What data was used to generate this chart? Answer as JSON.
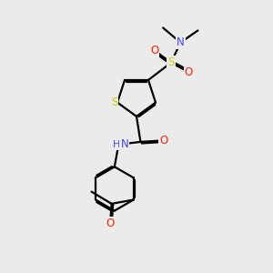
{
  "bg_color": "#ebebeb",
  "colors": {
    "C": "#000000",
    "N": "#4444ff",
    "O": "#ff2200",
    "S": "#cccc00",
    "bond": "#000000"
  },
  "lw": 1.6,
  "dbo": 0.055
}
